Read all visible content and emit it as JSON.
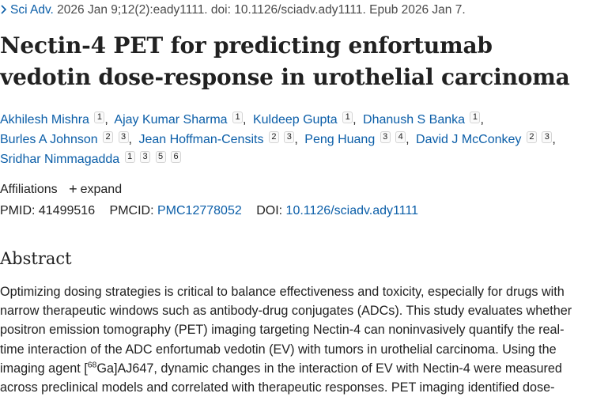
{
  "citation": {
    "chevron_icon": "chevron-right-icon",
    "journal": "Sci Adv.",
    "details": " 2026 Jan 9;12(2):eady1111. doi: 10.1126/sciadv.ady1111. Epub 2026 Jan 7."
  },
  "title": "Nectin-4 PET for predicting enfortumab vedotin dose-response in urothelial carcinoma",
  "authors": [
    {
      "name": "Akhilesh Mishra",
      "affs": [
        "1"
      ]
    },
    {
      "name": "Ajay Kumar Sharma",
      "affs": [
        "1"
      ]
    },
    {
      "name": "Kuldeep Gupta",
      "affs": [
        "1"
      ]
    },
    {
      "name": "Dhanush S Banka",
      "affs": [
        "1"
      ]
    },
    {
      "name": "Burles A Johnson",
      "affs": [
        "2",
        "3"
      ]
    },
    {
      "name": "Jean Hoffman-Censits",
      "affs": [
        "2",
        "3"
      ]
    },
    {
      "name": "Peng Huang",
      "affs": [
        "3",
        "4"
      ]
    },
    {
      "name": "David J McConkey",
      "affs": [
        "2",
        "3"
      ]
    },
    {
      "name": "Sridhar Nimmagadda",
      "affs": [
        "1",
        "3",
        "5",
        "6"
      ]
    }
  ],
  "affiliations": {
    "label": "Affiliations",
    "expand_label": "expand",
    "expand_icon": "plus-icon"
  },
  "ids": {
    "pmid_label": "PMID:",
    "pmid": "41499516",
    "pmcid_label": "PMCID:",
    "pmcid": "PMC12778052",
    "doi_label": "DOI:",
    "doi": "10.1126/sciadv.ady1111"
  },
  "abstract": {
    "heading": "Abstract",
    "text_before_sup": "Optimizing dosing strategies is critical to balance effectiveness and toxicity, especially for drugs with narrow therapeutic windows such as antibody-drug conjugates (ADCs). This study evaluates whether positron emission tomography (PET) imaging targeting Nectin-4 can noninvasively quantify the real-time interaction of the ADC enfortumab vedotin (EV) with tumors in urothelial carcinoma. Using the imaging agent [",
    "superscript": "68",
    "text_after_sup": "Ga]AJ647, dynamic changes in the interaction of EV with Nectin-4 were measured across preclinical models and correlated with therapeutic responses. PET imaging identified dose-"
  }
}
